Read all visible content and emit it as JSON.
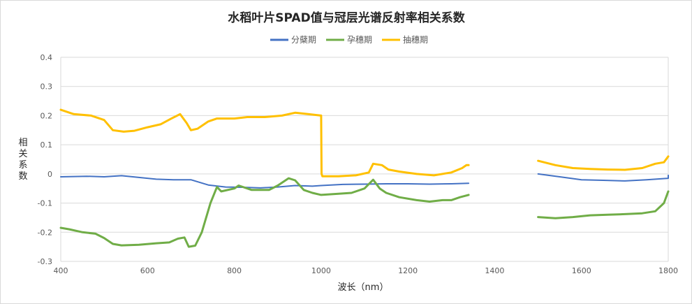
{
  "chart_data": {
    "type": "line",
    "title": "水稻叶片SPAD值与冠层光谱反射率相关系数",
    "xlabel": "波长（nm）",
    "ylabel": "相关系数",
    "xlim": [
      400,
      1800
    ],
    "ylim": [
      -0.3,
      0.4
    ],
    "x_ticks": [
      400,
      600,
      800,
      1000,
      1200,
      1400,
      1600,
      1800
    ],
    "y_ticks": [
      0.4,
      0.3,
      0.2,
      0.1,
      0,
      -0.1,
      -0.2,
      -0.3
    ],
    "y_tick_labels": [
      "0.4",
      "0.3",
      "0.2",
      "0.1",
      "0",
      "-0.1",
      "-0.2",
      "-0.3"
    ],
    "grid": "horizontal",
    "legend_position": "top",
    "series": [
      {
        "name": "分蘖期",
        "color": "#4472C4",
        "segments": [
          [
            [
              400,
              -0.01
            ],
            [
              460,
              -0.008
            ],
            [
              500,
              -0.01
            ],
            [
              540,
              -0.006
            ],
            [
              580,
              -0.012
            ],
            [
              620,
              -0.018
            ],
            [
              660,
              -0.02
            ],
            [
              700,
              -0.02
            ],
            [
              740,
              -0.038
            ],
            [
              780,
              -0.045
            ],
            [
              820,
              -0.046
            ],
            [
              860,
              -0.048
            ],
            [
              900,
              -0.045
            ],
            [
              940,
              -0.04
            ],
            [
              980,
              -0.042
            ],
            [
              1000,
              -0.04
            ],
            [
              1050,
              -0.036
            ],
            [
              1100,
              -0.035
            ],
            [
              1150,
              -0.034
            ],
            [
              1200,
              -0.034
            ],
            [
              1250,
              -0.035
            ],
            [
              1300,
              -0.034
            ],
            [
              1340,
              -0.032
            ]
          ],
          [
            [
              1500,
              0.0
            ],
            [
              1550,
              -0.01
            ],
            [
              1600,
              -0.02
            ],
            [
              1650,
              -0.022
            ],
            [
              1700,
              -0.024
            ],
            [
              1750,
              -0.02
            ],
            [
              1800,
              -0.015
            ],
            [
              1800,
              -0.005
            ]
          ]
        ]
      },
      {
        "name": "孕穗期",
        "color": "#70AD47",
        "segments": [
          [
            [
              400,
              -0.185
            ],
            [
              420,
              -0.19
            ],
            [
              450,
              -0.2
            ],
            [
              480,
              -0.205
            ],
            [
              500,
              -0.22
            ],
            [
              520,
              -0.24
            ],
            [
              540,
              -0.245
            ],
            [
              580,
              -0.243
            ],
            [
              620,
              -0.238
            ],
            [
              650,
              -0.235
            ],
            [
              670,
              -0.222
            ],
            [
              685,
              -0.218
            ],
            [
              695,
              -0.25
            ],
            [
              710,
              -0.246
            ],
            [
              725,
              -0.2
            ],
            [
              745,
              -0.1
            ],
            [
              760,
              -0.045
            ],
            [
              770,
              -0.06
            ],
            [
              800,
              -0.05
            ],
            [
              810,
              -0.04
            ],
            [
              840,
              -0.055
            ],
            [
              880,
              -0.055
            ],
            [
              900,
              -0.04
            ],
            [
              910,
              -0.03
            ],
            [
              925,
              -0.015
            ],
            [
              940,
              -0.022
            ],
            [
              960,
              -0.055
            ],
            [
              980,
              -0.065
            ],
            [
              1000,
              -0.072
            ],
            [
              1040,
              -0.068
            ],
            [
              1070,
              -0.065
            ],
            [
              1100,
              -0.05
            ],
            [
              1120,
              -0.02
            ],
            [
              1135,
              -0.05
            ],
            [
              1150,
              -0.065
            ],
            [
              1180,
              -0.08
            ],
            [
              1220,
              -0.09
            ],
            [
              1250,
              -0.095
            ],
            [
              1280,
              -0.09
            ],
            [
              1300,
              -0.09
            ],
            [
              1320,
              -0.08
            ],
            [
              1340,
              -0.072
            ]
          ],
          [
            [
              1500,
              -0.148
            ],
            [
              1540,
              -0.152
            ],
            [
              1580,
              -0.148
            ],
            [
              1620,
              -0.142
            ],
            [
              1660,
              -0.14
            ],
            [
              1700,
              -0.138
            ],
            [
              1740,
              -0.135
            ],
            [
              1770,
              -0.128
            ],
            [
              1790,
              -0.1
            ],
            [
              1800,
              -0.06
            ]
          ]
        ]
      },
      {
        "name": "抽穗期",
        "color": "#FFC000",
        "segments": [
          [
            [
              400,
              0.22
            ],
            [
              430,
              0.205
            ],
            [
              470,
              0.2
            ],
            [
              500,
              0.185
            ],
            [
              520,
              0.15
            ],
            [
              545,
              0.145
            ],
            [
              570,
              0.148
            ],
            [
              600,
              0.16
            ],
            [
              630,
              0.17
            ],
            [
              655,
              0.19
            ],
            [
              675,
              0.205
            ],
            [
              690,
              0.175
            ],
            [
              700,
              0.15
            ],
            [
              715,
              0.155
            ],
            [
              740,
              0.18
            ],
            [
              760,
              0.19
            ],
            [
              775,
              0.19
            ],
            [
              800,
              0.19
            ],
            [
              830,
              0.195
            ],
            [
              870,
              0.195
            ],
            [
              910,
              0.2
            ],
            [
              940,
              0.21
            ],
            [
              970,
              0.205
            ],
            [
              1000,
              0.2
            ],
            [
              1001,
              0.0
            ],
            [
              1003,
              -0.008
            ],
            [
              1040,
              -0.008
            ],
            [
              1080,
              -0.005
            ],
            [
              1110,
              0.005
            ],
            [
              1120,
              0.035
            ],
            [
              1140,
              0.03
            ],
            [
              1155,
              0.015
            ],
            [
              1180,
              0.008
            ],
            [
              1220,
              0.0
            ],
            [
              1260,
              -0.005
            ],
            [
              1300,
              0.005
            ],
            [
              1325,
              0.02
            ],
            [
              1335,
              0.03
            ],
            [
              1340,
              0.03
            ]
          ],
          [
            [
              1500,
              0.045
            ],
            [
              1540,
              0.03
            ],
            [
              1580,
              0.02
            ],
            [
              1620,
              0.017
            ],
            [
              1660,
              0.015
            ],
            [
              1700,
              0.014
            ],
            [
              1740,
              0.02
            ],
            [
              1770,
              0.035
            ],
            [
              1790,
              0.04
            ],
            [
              1800,
              0.06
            ]
          ]
        ]
      }
    ]
  }
}
